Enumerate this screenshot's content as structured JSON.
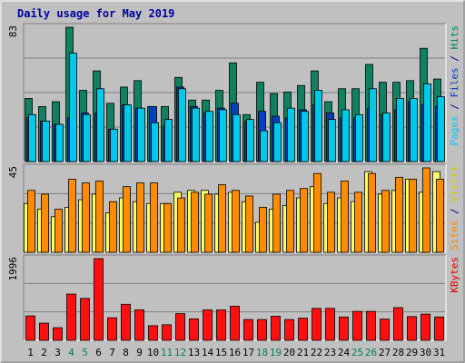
{
  "chart_data": {
    "type": "bar",
    "title": "Daily usage for May 2019",
    "categories": [
      "1",
      "2",
      "3",
      "4",
      "5",
      "6",
      "7",
      "8",
      "9",
      "10",
      "11",
      "12",
      "13",
      "14",
      "15",
      "16",
      "17",
      "18",
      "19",
      "20",
      "21",
      "22",
      "23",
      "24",
      "25",
      "26",
      "27",
      "28",
      "29",
      "30",
      "31"
    ],
    "weekend_days": [
      "4",
      "5",
      "11",
      "12",
      "18",
      "19",
      "25",
      "26"
    ],
    "panels": [
      {
        "id": "hits",
        "ymax_label": "83",
        "ymax": 83,
        "legend": [
          {
            "text": "Pages",
            "color": "#00C8E8"
          },
          {
            "text": " / ",
            "color": "#000080"
          },
          {
            "text": "Files",
            "color": "#0040C0"
          },
          {
            "text": " / ",
            "color": "#000080"
          },
          {
            "text": "Hits",
            "color": "#008060"
          }
        ],
        "series": [
          {
            "name": "Hits",
            "color": "#108060",
            "values": [
              39,
              34,
              37,
              83,
              44,
              56,
              36,
              46,
              50,
              34,
              34,
              52,
              38,
              38,
              44,
              61,
              29,
              49,
              42,
              43,
              47,
              56,
              37,
              45,
              45,
              60,
              49,
              49,
              50,
              70,
              51
            ]
          },
          {
            "name": "Files",
            "color": "#0040C0",
            "values": [
              27,
              25,
              23,
              27,
              30,
              30,
              20,
              35,
              33,
              34,
              22,
              46,
              34,
              30,
              33,
              36,
              25,
              31,
              28,
              27,
              32,
              35,
              30,
              27,
              27,
              33,
              29,
              32,
              37,
              35,
              34
            ]
          },
          {
            "name": "Pages",
            "color": "#00C8E8",
            "values": [
              29,
              25,
              23,
              67,
              29,
              45,
              20,
              35,
              33,
              24,
              26,
              45,
              33,
              31,
              32,
              29,
              26,
              19,
              24,
              33,
              31,
              44,
              26,
              32,
              29,
              45,
              30,
              39,
              39,
              48,
              40
            ]
          }
        ]
      },
      {
        "id": "visits",
        "ymax_label": "45",
        "ymax": 45,
        "legend": [
          {
            "text": "Sites",
            "color": "#FF8800"
          },
          {
            "text": " / ",
            "color": "#000080"
          },
          {
            "text": "Visits",
            "color": "#D8C800"
          }
        ],
        "series": [
          {
            "name": "Visits",
            "color": "#FFFF60",
            "values": [
              26,
              23,
              19,
              24,
              28,
              31,
              21,
              29,
              27,
              26,
              26,
              32,
              33,
              33,
              31,
              32,
              27,
              16,
              23,
              25,
              29,
              35,
              26,
              29,
              27,
              43,
              31,
              33,
              39,
              32,
              43
            ]
          },
          {
            "name": "Sites",
            "color": "#FF8C00",
            "values": [
              33,
              31,
              23,
              39,
              37,
              38,
              27,
              35,
              37,
              37,
              26,
              29,
              32,
              31,
              36,
              33,
              30,
              24,
              31,
              33,
              34,
              42,
              32,
              38,
              32,
              42,
              33,
              40,
              39,
              45,
              39
            ]
          }
        ]
      },
      {
        "id": "kbytes",
        "ymax_label": "1996",
        "ymax": 1996,
        "legend": [
          {
            "text": "KBytes",
            "color": "#E00000"
          }
        ],
        "series": [
          {
            "name": "KBytes",
            "color": "#FF1010",
            "values": [
              596,
              420,
              308,
              1130,
              1025,
              1996,
              552,
              881,
              744,
              357,
              380,
              651,
              525,
              742,
              742,
              832,
              508,
              508,
              588,
              508,
              541,
              780,
              780,
              570,
              707,
              707,
              519,
              799,
              580,
              640,
              570
            ]
          }
        ]
      }
    ]
  }
}
